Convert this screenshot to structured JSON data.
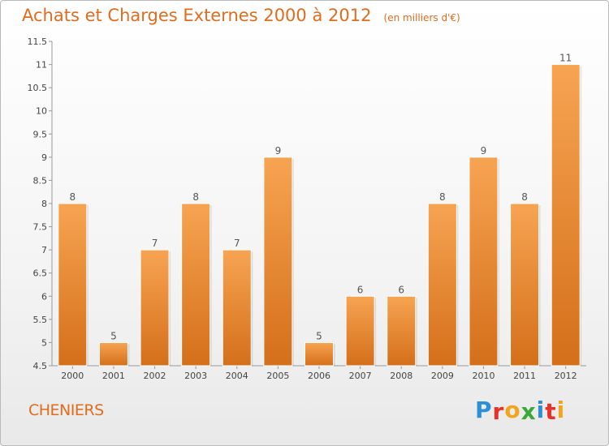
{
  "chart_data": {
    "type": "bar",
    "title": "Achats et Charges Externes 2000 à 2012",
    "subtitle": "(en milliers d'€)",
    "categories": [
      "2000",
      "2001",
      "2002",
      "2003",
      "2004",
      "2005",
      "2006",
      "2007",
      "2008",
      "2009",
      "2010",
      "2011",
      "2012"
    ],
    "values": [
      8,
      5,
      7,
      8,
      7,
      9,
      5,
      6,
      6,
      8,
      9,
      8,
      11
    ],
    "value_labels": [
      "8",
      "5",
      "7",
      "8",
      "7",
      "9",
      "5",
      "6",
      "6",
      "8",
      "9",
      "8",
      "11"
    ],
    "ylim": [
      4.5,
      11.5
    ],
    "yticks": [
      4.5,
      5,
      5.5,
      6,
      6.5,
      7,
      7.5,
      8,
      8.5,
      9,
      9.5,
      10,
      10.5,
      11,
      11.5
    ],
    "ytick_labels": [
      "4.5",
      "5",
      "5.5",
      "6",
      "6.5",
      "7",
      "7.5",
      "8",
      "8.5",
      "9",
      "9.5",
      "10",
      "10.5",
      "11",
      "11.5"
    ],
    "xlabel": "",
    "ylabel": "",
    "grid": false,
    "bar_color_top": "#f7a452",
    "bar_color_bottom": "#d46f1a"
  },
  "footer": {
    "commune": "CHENIERS",
    "brand_letters": [
      "P",
      "r",
      "o",
      "x",
      "i",
      "t",
      "i"
    ],
    "brand_colors": [
      "#2f8fd6",
      "#e9312a",
      "#f2a51a",
      "#3aa93a",
      "#2f8fd6",
      "#e9312a",
      "#f2a51a"
    ]
  }
}
